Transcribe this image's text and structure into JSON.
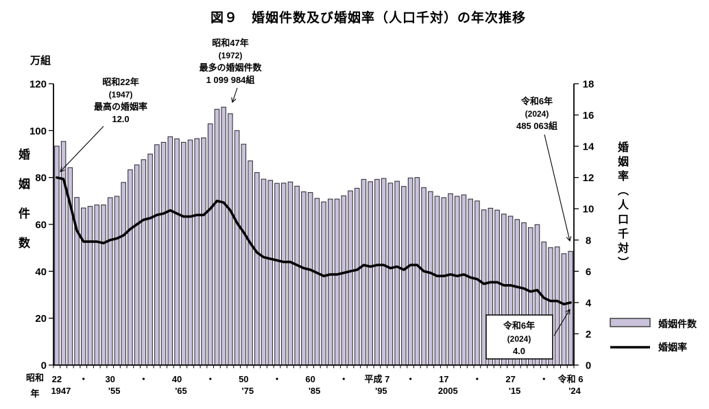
{
  "title": "図９　婚姻件数及び婚姻率（人口千対）の年次推移",
  "colors": {
    "bar_fill": "#c9c2da",
    "bar_stroke": "#35323e",
    "line": "#000000",
    "text": "#000000"
  },
  "left_axis": {
    "unit": "万組",
    "title_vertical": "婚姻件数",
    "ticks": [
      0,
      20,
      40,
      60,
      80,
      100,
      120
    ]
  },
  "right_axis": {
    "title_vertical": "婚姻率（人口千対）",
    "ticks": [
      0,
      2,
      4,
      6,
      8,
      10,
      12,
      14,
      16,
      18
    ]
  },
  "x_axis": {
    "era_line1": "昭和",
    "era_line2": "年",
    "labels": [
      {
        "year": 1947,
        "top": "22",
        "bottom": "1947"
      },
      {
        "year": 1951,
        "top": "・",
        "bottom": ""
      },
      {
        "year": 1955,
        "top": "30",
        "bottom": "'55"
      },
      {
        "year": 1960,
        "top": "・",
        "bottom": ""
      },
      {
        "year": 1965,
        "top": "40",
        "bottom": "'65"
      },
      {
        "year": 1970,
        "top": "・",
        "bottom": ""
      },
      {
        "year": 1975,
        "top": "50",
        "bottom": "'75"
      },
      {
        "year": 1980,
        "top": "・",
        "bottom": ""
      },
      {
        "year": 1985,
        "top": "60",
        "bottom": "'85"
      },
      {
        "year": 1990,
        "top": "・",
        "bottom": ""
      },
      {
        "year": 1995,
        "top": "平成 7",
        "bottom": "'95"
      },
      {
        "year": 2000,
        "top": "・",
        "bottom": ""
      },
      {
        "year": 2005,
        "top": "17",
        "bottom": "2005"
      },
      {
        "year": 2010,
        "top": "・",
        "bottom": ""
      },
      {
        "year": 2015,
        "top": "27",
        "bottom": "'15"
      },
      {
        "year": 2020,
        "top": "・",
        "bottom": ""
      },
      {
        "year": 2024,
        "top": "令和 6",
        "bottom": "'24"
      }
    ]
  },
  "annotations": {
    "peak_rate": {
      "line1": "昭和22年",
      "line2": "(1947)",
      "line3": "最高の婚姻率",
      "line4": "12.0"
    },
    "peak_count": {
      "line1": "昭和47年",
      "line2": "(1972)",
      "line3": "最多の婚姻件数",
      "line4": "1 099 984組"
    },
    "latest_count": {
      "line1": "令和6年",
      "line2": "(2024)",
      "line3": "485 063組"
    },
    "latest_rate": {
      "line1": "令和6年",
      "line2": "(2024)",
      "line3": "4.0"
    }
  },
  "legend": {
    "bar_label": "婚姻件数",
    "line_label": "婚姻率"
  },
  "chart_data": {
    "type": "combo",
    "title": "図９　婚姻件数及び婚姻率（人口千対）の年次推移",
    "x": [
      1947,
      1948,
      1949,
      1950,
      1951,
      1952,
      1953,
      1954,
      1955,
      1956,
      1957,
      1958,
      1959,
      1960,
      1961,
      1962,
      1963,
      1964,
      1965,
      1966,
      1967,
      1968,
      1969,
      1970,
      1971,
      1972,
      1973,
      1974,
      1975,
      1976,
      1977,
      1978,
      1979,
      1980,
      1981,
      1982,
      1983,
      1984,
      1985,
      1986,
      1987,
      1988,
      1989,
      1990,
      1991,
      1992,
      1993,
      1994,
      1995,
      1996,
      1997,
      1998,
      1999,
      2000,
      2001,
      2002,
      2003,
      2004,
      2005,
      2006,
      2007,
      2008,
      2009,
      2010,
      2011,
      2012,
      2013,
      2014,
      2015,
      2016,
      2017,
      2018,
      2019,
      2020,
      2021,
      2022,
      2023,
      2024
    ],
    "series": [
      {
        "name": "婚姻件数",
        "type": "bar",
        "axis": "left",
        "unit": "万組",
        "values": [
          93.4,
          95.4,
          84.2,
          71.5,
          67.0,
          67.7,
          68.3,
          68.3,
          71.4,
          72.0,
          77.9,
          83.3,
          85.4,
          87.6,
          90.0,
          94.0,
          95.0,
          97.4,
          96.5,
          95.0,
          96.0,
          96.6,
          96.9,
          102.9,
          109.1,
          110.0,
          107.2,
          100.0,
          94.2,
          87.1,
          82.1,
          79.3,
          78.8,
          77.5,
          77.6,
          78.1,
          76.3,
          73.9,
          73.6,
          71.1,
          69.6,
          70.8,
          70.8,
          72.2,
          74.3,
          75.4,
          79.2,
          78.2,
          79.2,
          79.6,
          77.6,
          78.4,
          76.2,
          79.8,
          80.0,
          75.7,
          74.0,
          72.0,
          71.4,
          73.1,
          72.0,
          72.6,
          70.8,
          70.0,
          66.2,
          66.9,
          66.1,
          64.4,
          63.5,
          62.1,
          60.7,
          58.6,
          59.9,
          52.5,
          50.1,
          50.4,
          47.5,
          48.5
        ]
      },
      {
        "name": "婚姻率",
        "type": "line",
        "axis": "right",
        "unit": "人口千対",
        "values": [
          12.0,
          11.9,
          10.3,
          8.6,
          7.9,
          7.9,
          7.9,
          7.8,
          8.0,
          8.1,
          8.3,
          8.7,
          9.0,
          9.3,
          9.4,
          9.6,
          9.7,
          9.9,
          9.7,
          9.5,
          9.5,
          9.6,
          9.6,
          10.0,
          10.5,
          10.4,
          9.9,
          9.1,
          8.5,
          7.8,
          7.2,
          6.9,
          6.8,
          6.7,
          6.6,
          6.6,
          6.4,
          6.2,
          6.1,
          5.9,
          5.7,
          5.8,
          5.8,
          5.9,
          6.0,
          6.1,
          6.4,
          6.3,
          6.4,
          6.4,
          6.2,
          6.3,
          6.1,
          6.4,
          6.4,
          6.0,
          5.9,
          5.7,
          5.7,
          5.8,
          5.7,
          5.8,
          5.6,
          5.5,
          5.2,
          5.3,
          5.3,
          5.1,
          5.1,
          5.0,
          4.9,
          4.7,
          4.8,
          4.3,
          4.1,
          4.1,
          3.9,
          4.0
        ]
      }
    ],
    "left_ylim": [
      0,
      120
    ],
    "right_ylim": [
      0,
      18
    ],
    "grid": false,
    "legend_position": "right",
    "notable_points": {
      "highest_rate": {
        "year": 1947,
        "rate": 12.0
      },
      "most_marriages": {
        "year": 1972,
        "count": "1 099 984組"
      },
      "latest": {
        "year": 2024,
        "count": "485 063組",
        "rate": 4.0
      }
    }
  }
}
